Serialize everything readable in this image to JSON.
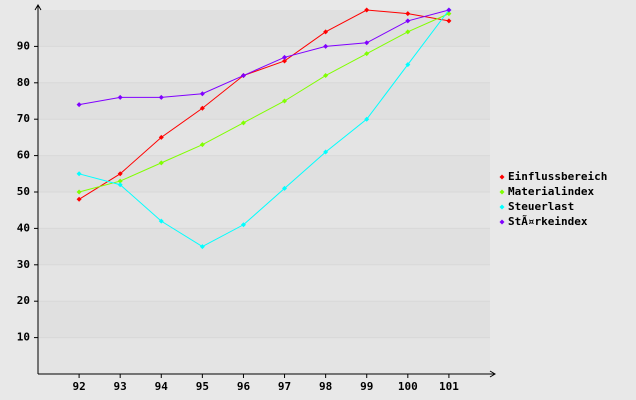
{
  "chart_data": {
    "type": "line",
    "x": [
      92,
      93,
      94,
      95,
      96,
      97,
      98,
      99,
      100,
      101
    ],
    "xlim": [
      91,
      102
    ],
    "xticks": [
      92,
      93,
      94,
      95,
      96,
      97,
      98,
      99,
      100,
      101
    ],
    "ylim": [
      0,
      100
    ],
    "yticks": [
      10,
      20,
      30,
      40,
      50,
      60,
      70,
      80,
      90
    ],
    "grid": true,
    "legend": "right",
    "series": [
      {
        "name": "Einflussbereich",
        "color": "#ff0000",
        "values": [
          48,
          55,
          65,
          73,
          82,
          86,
          94,
          100,
          99,
          97
        ]
      },
      {
        "name": "Materialindex",
        "color": "#80ff00",
        "values": [
          50,
          53,
          58,
          63,
          69,
          75,
          82,
          88,
          94,
          99
        ]
      },
      {
        "name": "Steuerlast",
        "color": "#00ffff",
        "values": [
          55,
          52,
          42,
          35,
          41,
          51,
          61,
          70,
          85,
          100
        ]
      },
      {
        "name": "StÃ¤rkeindex",
        "color": "#8000ff",
        "values": [
          74,
          76,
          76,
          77,
          82,
          87,
          90,
          91,
          97,
          100
        ]
      }
    ]
  }
}
